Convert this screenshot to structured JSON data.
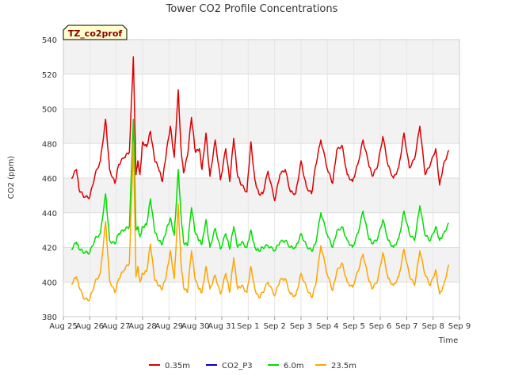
{
  "chart_data": {
    "type": "line",
    "title": "Tower CO2 Profile Concentrations",
    "xlabel": "Time",
    "ylabel": "CO2 (ppm)",
    "ylim": [
      380,
      540
    ],
    "yticks": [
      380,
      400,
      420,
      440,
      460,
      480,
      500,
      520,
      540
    ],
    "xlim": [
      0,
      15
    ],
    "xticks": [
      "Aug 25",
      "Aug 26",
      "Aug 27",
      "Aug 28",
      "Aug 29",
      "Aug 30",
      "Aug 31",
      "Sep 1",
      "Sep 2",
      "Sep 3",
      "Sep 4",
      "Sep 5",
      "Sep 6",
      "Sep 7",
      "Sep 8",
      "Sep 9"
    ],
    "grid": true,
    "tag": "TZ_co2prof",
    "legend_position": "bottom",
    "series": [
      {
        "name": "0.35m",
        "color": "#dd0000",
        "x": [
          0.3,
          0.5,
          0.6,
          0.8,
          1.0,
          1.2,
          1.4,
          1.6,
          1.75,
          1.95,
          2.1,
          2.3,
          2.5,
          2.65,
          2.75,
          2.82,
          2.9,
          3.0,
          3.15,
          3.3,
          3.45,
          3.6,
          3.75,
          3.9,
          4.05,
          4.2,
          4.35,
          4.45,
          4.55,
          4.7,
          4.85,
          5.0,
          5.15,
          5.25,
          5.4,
          5.55,
          5.75,
          5.95,
          6.15,
          6.3,
          6.45,
          6.6,
          6.75,
          6.95,
          7.1,
          7.25,
          7.4,
          7.55,
          7.75,
          8.0,
          8.2,
          8.4,
          8.6,
          8.8,
          9.0,
          9.2,
          9.4,
          9.55,
          9.75,
          10.0,
          10.2,
          10.35,
          10.55,
          10.75,
          10.95,
          11.15,
          11.35,
          11.55,
          11.7,
          11.9,
          12.1,
          12.3,
          12.5,
          12.7,
          12.9,
          13.1,
          13.3,
          13.5,
          13.7,
          13.9,
          14.1,
          14.25,
          14.4,
          14.6
        ],
        "values": [
          460,
          465,
          453,
          449,
          449,
          462,
          470,
          494,
          465,
          457,
          468,
          472,
          475,
          530,
          462,
          470,
          462,
          481,
          478,
          487,
          471,
          466,
          458,
          475,
          490,
          472,
          511,
          478,
          463,
          473,
          495,
          475,
          477,
          465,
          486,
          461,
          482,
          459,
          477,
          458,
          483,
          461,
          456,
          452,
          481,
          459,
          451,
          451,
          464,
          447,
          462,
          465,
          452,
          451,
          470,
          455,
          451,
          467,
          482,
          465,
          457,
          476,
          479,
          462,
          458,
          468,
          482,
          469,
          461,
          467,
          484,
          467,
          460,
          466,
          486,
          466,
          471,
          490,
          462,
          468,
          477,
          456,
          468,
          476
        ]
      },
      {
        "name": "CO2_P3",
        "color": "#0000cc",
        "x": [],
        "values": []
      },
      {
        "name": "6.0m",
        "color": "#00dd00",
        "x": [
          0.3,
          0.5,
          0.6,
          0.8,
          1.0,
          1.2,
          1.4,
          1.6,
          1.75,
          1.95,
          2.1,
          2.3,
          2.5,
          2.65,
          2.75,
          2.82,
          2.9,
          3.0,
          3.15,
          3.3,
          3.45,
          3.6,
          3.75,
          3.9,
          4.05,
          4.2,
          4.35,
          4.45,
          4.55,
          4.7,
          4.85,
          5.0,
          5.15,
          5.25,
          5.4,
          5.55,
          5.75,
          5.95,
          6.15,
          6.3,
          6.45,
          6.6,
          6.75,
          6.95,
          7.1,
          7.25,
          7.4,
          7.55,
          7.75,
          8.0,
          8.2,
          8.4,
          8.6,
          8.8,
          9.0,
          9.2,
          9.4,
          9.55,
          9.75,
          10.0,
          10.2,
          10.35,
          10.55,
          10.75,
          10.95,
          11.15,
          11.35,
          11.55,
          11.7,
          11.9,
          12.1,
          12.3,
          12.5,
          12.7,
          12.9,
          13.1,
          13.3,
          13.5,
          13.7,
          13.9,
          14.1,
          14.25,
          14.4,
          14.6
        ],
        "values": [
          419,
          423,
          419,
          417,
          417,
          425,
          428,
          451,
          424,
          422,
          428,
          430,
          432,
          494,
          430,
          432,
          426,
          432,
          433,
          448,
          430,
          424,
          422,
          430,
          437,
          427,
          465,
          440,
          423,
          421,
          443,
          428,
          424,
          422,
          436,
          420,
          431,
          419,
          428,
          419,
          432,
          420,
          423,
          420,
          430,
          420,
          418,
          420,
          421,
          418,
          423,
          424,
          420,
          420,
          428,
          421,
          418,
          422,
          440,
          427,
          420,
          429,
          432,
          424,
          420,
          428,
          441,
          426,
          422,
          425,
          436,
          424,
          420,
          425,
          441,
          428,
          424,
          444,
          427,
          424,
          432,
          424,
          428,
          434
        ]
      },
      {
        "name": "23.5m",
        "color": "#ffa500",
        "x": [
          0.3,
          0.5,
          0.6,
          0.8,
          1.0,
          1.2,
          1.4,
          1.6,
          1.75,
          1.95,
          2.1,
          2.3,
          2.5,
          2.65,
          2.75,
          2.82,
          2.9,
          3.0,
          3.15,
          3.3,
          3.45,
          3.6,
          3.75,
          3.9,
          4.05,
          4.2,
          4.35,
          4.45,
          4.55,
          4.7,
          4.85,
          5.0,
          5.15,
          5.25,
          5.4,
          5.55,
          5.75,
          5.95,
          6.15,
          6.3,
          6.45,
          6.6,
          6.75,
          6.95,
          7.1,
          7.25,
          7.4,
          7.55,
          7.75,
          8.0,
          8.2,
          8.4,
          8.6,
          8.8,
          9.0,
          9.2,
          9.4,
          9.55,
          9.75,
          10.0,
          10.2,
          10.35,
          10.55,
          10.75,
          10.95,
          11.15,
          11.35,
          11.55,
          11.7,
          11.9,
          12.1,
          12.3,
          12.5,
          12.7,
          12.9,
          13.1,
          13.3,
          13.5,
          13.7,
          13.9,
          14.1,
          14.25,
          14.4,
          14.6
        ],
        "values": [
          399,
          403,
          397,
          390,
          390,
          400,
          405,
          435,
          401,
          394,
          402,
          407,
          411,
          480,
          403,
          409,
          400,
          405,
          406,
          422,
          402,
          398,
          396,
          404,
          418,
          402,
          445,
          412,
          397,
          394,
          418,
          401,
          396,
          394,
          409,
          396,
          404,
          393,
          405,
          394,
          414,
          396,
          398,
          394,
          409,
          396,
          391,
          394,
          400,
          392,
          401,
          402,
          393,
          392,
          405,
          397,
          391,
          398,
          421,
          404,
          395,
          406,
          411,
          400,
          397,
          406,
          416,
          402,
          396,
          401,
          417,
          402,
          398,
          403,
          419,
          404,
          398,
          418,
          404,
          398,
          407,
          393,
          398,
          410
        ]
      }
    ]
  }
}
